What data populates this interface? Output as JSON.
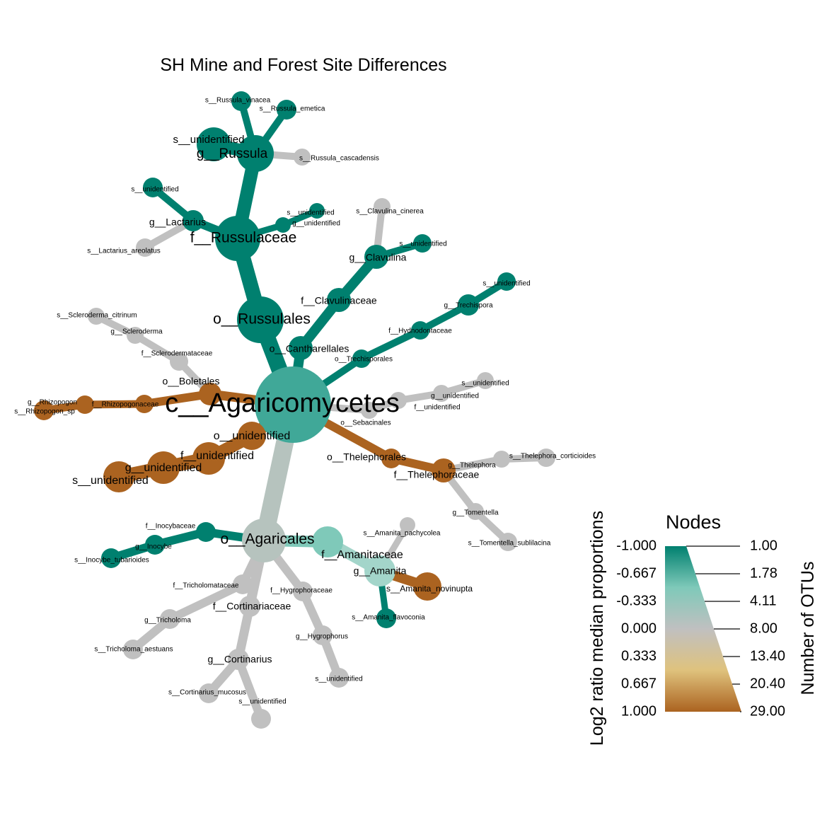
{
  "title": "SH Mine and Forest Site Differences",
  "colors": {
    "teal": "#00806f",
    "gray": "#c0c0c0",
    "brown": "#ab6320",
    "root": "#40a898",
    "agaricales": "#b6c3be",
    "amanitaceae": "#7fc9b9",
    "amanita": "#a3d5ca",
    "white": "#ffffff"
  },
  "nodes": [
    {
      "id": "agaricomycetes",
      "label": "c__Agaricomycetes",
      "color": "root"
    },
    {
      "id": "russulales",
      "label": "o__Russulales",
      "color": "teal"
    },
    {
      "id": "russulaceae",
      "label": "f__Russulaceae",
      "color": "teal"
    },
    {
      "id": "russula",
      "label": "g__Russula",
      "color": "teal"
    },
    {
      "id": "r_vinacea",
      "label": "s__Russula_vinacea",
      "color": "teal"
    },
    {
      "id": "r_emetica",
      "label": "s__Russula_emetica",
      "color": "teal"
    },
    {
      "id": "r_unid",
      "label": "s__unidentified",
      "color": "teal"
    },
    {
      "id": "r_cascadensis",
      "label": "s__Russula_cascadensis",
      "color": "gray"
    },
    {
      "id": "lactarius",
      "label": "g__Lactarius",
      "color": "teal"
    },
    {
      "id": "lact_unid",
      "label": "s__unidentified",
      "color": "teal"
    },
    {
      "id": "lact_areolatus",
      "label": "s__Lactarius_areolatus",
      "color": "gray"
    },
    {
      "id": "russ_gunid",
      "label": "g__unidentified",
      "color": "teal"
    },
    {
      "id": "russ_sunid",
      "label": "s__unidentified",
      "color": "teal"
    },
    {
      "id": "cantharellales",
      "label": "o__Cantharellales",
      "color": "teal"
    },
    {
      "id": "clavulinaceae",
      "label": "f__Clavulinaceae",
      "color": "teal"
    },
    {
      "id": "clavulina",
      "label": "g__Clavulina",
      "color": "teal"
    },
    {
      "id": "clav_cinerea",
      "label": "s__Clavulina_cinerea",
      "color": "gray"
    },
    {
      "id": "clav_unid",
      "label": "s__unidentified",
      "color": "teal"
    },
    {
      "id": "trechisporales",
      "label": "o__Trechisporales",
      "color": "teal"
    },
    {
      "id": "hydnodontaceae",
      "label": "f__Hydnodontaceae",
      "color": "teal"
    },
    {
      "id": "trechispora",
      "label": "g__Trechispora",
      "color": "teal"
    },
    {
      "id": "trech_unid",
      "label": "s__unidentified",
      "color": "teal"
    },
    {
      "id": "sebacinales",
      "label": "o__Sebacinales",
      "color": "gray"
    },
    {
      "id": "seb_funid",
      "label": "f__unidentified",
      "color": "gray"
    },
    {
      "id": "seb_gunid",
      "label": "g__unidentified",
      "color": "gray"
    },
    {
      "id": "seb_sunid",
      "label": "s__unidentified",
      "color": "gray"
    },
    {
      "id": "boletales",
      "label": "o__Boletales",
      "color": "brown"
    },
    {
      "id": "sclerodermataceae",
      "label": "f__Sclerodermataceae",
      "color": "gray"
    },
    {
      "id": "scleroderma",
      "label": "g__Scleroderma",
      "color": "gray"
    },
    {
      "id": "scl_citrinum",
      "label": "s__Scleroderma_citrinum",
      "color": "gray"
    },
    {
      "id": "rhizopogonaceae",
      "label": "f__Rhizopogonaceae",
      "color": "brown"
    },
    {
      "id": "rhizopogon",
      "label": "g__Rhizopogon",
      "color": "brown"
    },
    {
      "id": "rhizo_sp",
      "label": "s__Rhizopogon_sp",
      "color": "brown"
    },
    {
      "id": "o_unid",
      "label": "o__unidentified",
      "color": "brown"
    },
    {
      "id": "f_unid",
      "label": "f__unidentified",
      "color": "brown"
    },
    {
      "id": "g_unid",
      "label": "g__unidentified",
      "color": "brown"
    },
    {
      "id": "s_unid",
      "label": "s__unidentified",
      "color": "brown"
    },
    {
      "id": "thelephorales",
      "label": "o__Thelephorales",
      "color": "brown"
    },
    {
      "id": "thelephoraceae",
      "label": "f__Thelephoraceae",
      "color": "brown"
    },
    {
      "id": "thelephora",
      "label": "g__Thelephora",
      "color": "gray"
    },
    {
      "id": "thel_cortic",
      "label": "s__Thelephora_corticioides",
      "color": "gray"
    },
    {
      "id": "tomentella",
      "label": "g__Tomentella",
      "color": "gray"
    },
    {
      "id": "tom_sublilacina",
      "label": "s__Tomentella_sublilacina",
      "color": "gray"
    },
    {
      "id": "agaricales",
      "label": "o__Agaricales",
      "color": "agaricales"
    },
    {
      "id": "inocybaceae",
      "label": "f__Inocybaceae",
      "color": "teal"
    },
    {
      "id": "inocybe",
      "label": "g__Inocybe",
      "color": "teal"
    },
    {
      "id": "ino_tubarioides",
      "label": "s__Inocybe_tubarioides",
      "color": "teal"
    },
    {
      "id": "amanitaceae",
      "label": "f__Amanitaceae",
      "color": "amanitaceae"
    },
    {
      "id": "amanita",
      "label": "g__Amanita",
      "color": "amanita"
    },
    {
      "id": "am_pachycolea",
      "label": "s__Amanita_pachycolea",
      "color": "gray"
    },
    {
      "id": "am_novinupta",
      "label": "s__Amanita_novinupta",
      "color": "brown"
    },
    {
      "id": "am_flavoconia",
      "label": "s__Amanita_flavoconia",
      "color": "teal"
    },
    {
      "id": "tricholomataceae",
      "label": "f__Tricholomataceae",
      "color": "gray"
    },
    {
      "id": "tricholoma",
      "label": "g__Tricholoma",
      "color": "gray"
    },
    {
      "id": "tri_aestuans",
      "label": "s__Tricholoma_aestuans",
      "color": "gray"
    },
    {
      "id": "cortinariaceae",
      "label": "f__Cortinariaceae",
      "color": "gray"
    },
    {
      "id": "cortinarius",
      "label": "g__Cortinarius",
      "color": "gray"
    },
    {
      "id": "cort_mucosus",
      "label": "s__Cortinarius_mucosus",
      "color": "gray"
    },
    {
      "id": "cort_unid",
      "label": "s__unidentified",
      "color": "gray"
    },
    {
      "id": "hygrophoraceae",
      "label": "f__Hygrophoraceae",
      "color": "gray"
    },
    {
      "id": "hygrophorus",
      "label": "g__Hygrophorus",
      "color": "gray"
    },
    {
      "id": "hyg_unid",
      "label": "s__unidentified",
      "color": "gray"
    }
  ],
  "edges": [
    [
      "agaricomycetes",
      "russulales",
      "teal"
    ],
    [
      "russulales",
      "russulaceae",
      "teal"
    ],
    [
      "russulaceae",
      "russula",
      "teal"
    ],
    [
      "russula",
      "r_vinacea",
      "teal"
    ],
    [
      "russula",
      "r_emetica",
      "teal"
    ],
    [
      "russula",
      "r_unid",
      "teal"
    ],
    [
      "russula",
      "r_cascadensis",
      "gray"
    ],
    [
      "russulaceae",
      "lactarius",
      "teal"
    ],
    [
      "lactarius",
      "lact_unid",
      "teal"
    ],
    [
      "lactarius",
      "lact_areolatus",
      "gray"
    ],
    [
      "russulaceae",
      "russ_gunid",
      "teal"
    ],
    [
      "russ_gunid",
      "russ_sunid",
      "teal"
    ],
    [
      "agaricomycetes",
      "cantharellales",
      "teal"
    ],
    [
      "cantharellales",
      "clavulinaceae",
      "teal"
    ],
    [
      "clavulinaceae",
      "clavulina",
      "teal"
    ],
    [
      "clavulina",
      "clav_cinerea",
      "gray"
    ],
    [
      "clavulina",
      "clav_unid",
      "teal"
    ],
    [
      "agaricomycetes",
      "trechisporales",
      "teal"
    ],
    [
      "trechisporales",
      "hydnodontaceae",
      "teal"
    ],
    [
      "hydnodontaceae",
      "trechispora",
      "teal"
    ],
    [
      "trechispora",
      "trech_unid",
      "teal"
    ],
    [
      "agaricomycetes",
      "sebacinales",
      "gray"
    ],
    [
      "sebacinales",
      "seb_funid",
      "gray"
    ],
    [
      "seb_funid",
      "seb_gunid",
      "gray"
    ],
    [
      "seb_gunid",
      "seb_sunid",
      "gray"
    ],
    [
      "agaricomycetes",
      "boletales",
      "brown"
    ],
    [
      "boletales",
      "sclerodermataceae",
      "gray"
    ],
    [
      "sclerodermataceae",
      "scleroderma",
      "gray"
    ],
    [
      "scleroderma",
      "scl_citrinum",
      "gray"
    ],
    [
      "boletales",
      "rhizopogonaceae",
      "brown"
    ],
    [
      "rhizopogonaceae",
      "rhizopogon",
      "brown"
    ],
    [
      "rhizopogon",
      "rhizo_sp",
      "brown"
    ],
    [
      "agaricomycetes",
      "o_unid",
      "brown"
    ],
    [
      "o_unid",
      "f_unid",
      "brown"
    ],
    [
      "f_unid",
      "g_unid",
      "brown"
    ],
    [
      "g_unid",
      "s_unid",
      "brown"
    ],
    [
      "agaricomycetes",
      "thelephorales",
      "brown"
    ],
    [
      "thelephorales",
      "thelephoraceae",
      "brown"
    ],
    [
      "thelephoraceae",
      "thelephora",
      "gray"
    ],
    [
      "thelephora",
      "thel_cortic",
      "gray"
    ],
    [
      "thelephoraceae",
      "tomentella",
      "gray"
    ],
    [
      "tomentella",
      "tom_sublilacina",
      "gray"
    ],
    [
      "agaricomycetes",
      "agaricales",
      "agaricales"
    ],
    [
      "agaricales",
      "inocybaceae",
      "teal"
    ],
    [
      "inocybaceae",
      "inocybe",
      "teal"
    ],
    [
      "inocybe",
      "ino_tubarioides",
      "teal"
    ],
    [
      "agaricales",
      "amanitaceae",
      "amanitaceae"
    ],
    [
      "amanitaceae",
      "amanita",
      "amanita"
    ],
    [
      "amanita",
      "am_pachycolea",
      "gray"
    ],
    [
      "amanita",
      "am_novinupta",
      "brown"
    ],
    [
      "amanita",
      "am_flavoconia",
      "teal"
    ],
    [
      "agaricales",
      "tricholomataceae",
      "gray"
    ],
    [
      "tricholomataceae",
      "tricholoma",
      "gray"
    ],
    [
      "tricholoma",
      "tri_aestuans",
      "gray"
    ],
    [
      "agaricales",
      "cortinariaceae",
      "gray"
    ],
    [
      "cortinariaceae",
      "cortinarius",
      "gray"
    ],
    [
      "cortinarius",
      "cort_mucosus",
      "gray"
    ],
    [
      "cortinarius",
      "cort_unid",
      "gray"
    ],
    [
      "agaricales",
      "hygrophoraceae",
      "gray"
    ],
    [
      "hygrophoraceae",
      "hygrophorus",
      "gray"
    ],
    [
      "hygrophorus",
      "hyg_unid",
      "gray"
    ]
  ],
  "legend": {
    "title": "Nodes",
    "left_axis_title": "Log2 ratio median proportions",
    "right_axis_title": "Number of OTUs",
    "left_ticks": [
      "-1.000",
      "-0.667",
      "-0.333",
      "0.000",
      "0.333",
      "0.667",
      "1.000"
    ],
    "right_ticks": [
      "1.00",
      "1.78",
      "4.11",
      "8.00",
      "13.40",
      "20.40",
      "29.00"
    ],
    "gradient": [
      "#00806f",
      "#7fc9b9",
      "#c0c0c0",
      "#dfc27d",
      "#ab6320"
    ]
  }
}
